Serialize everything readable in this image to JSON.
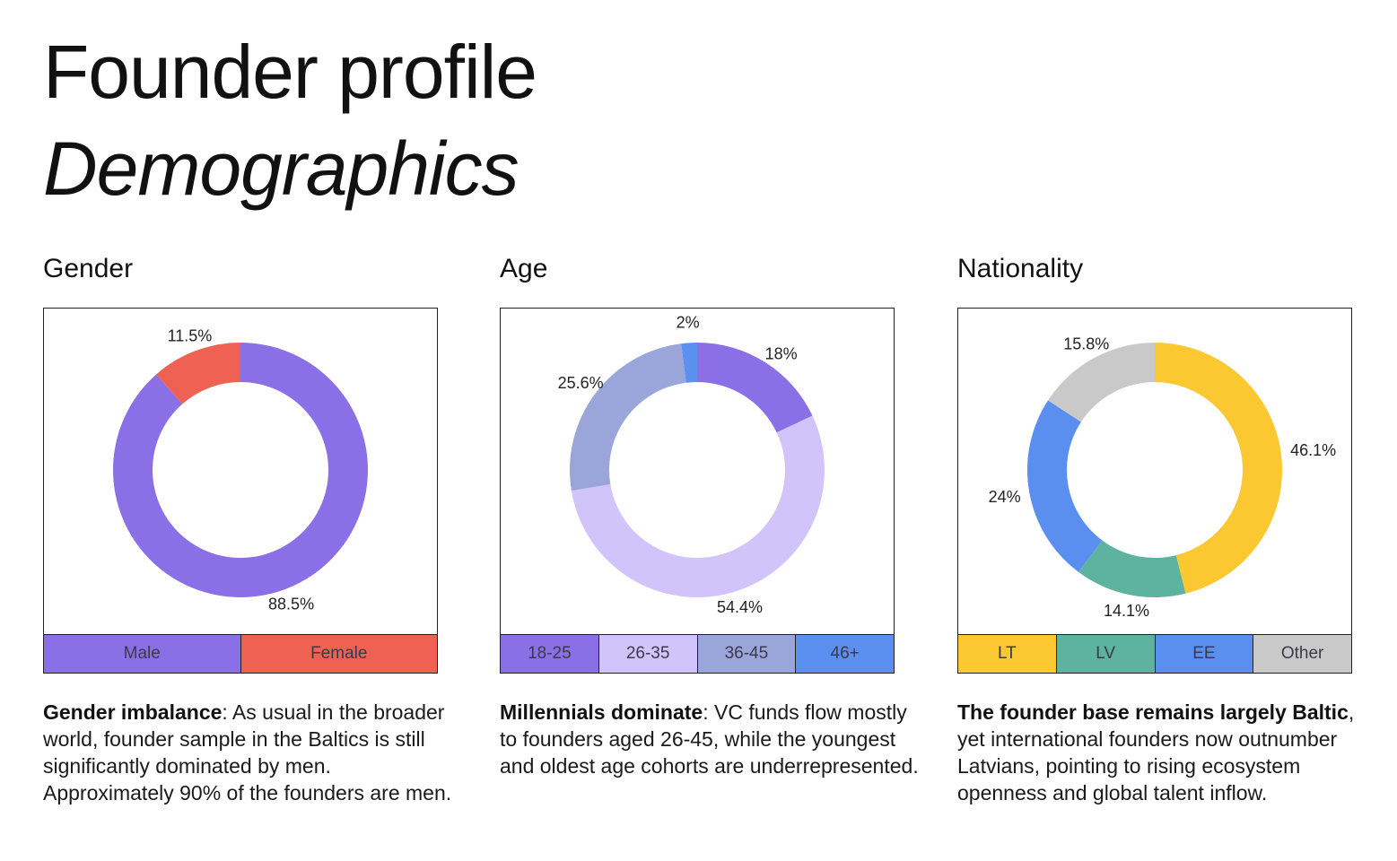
{
  "page": {
    "title": "Founder profile",
    "subtitle": "Demographics"
  },
  "panels": [
    {
      "heading": "Gender",
      "desc_bold": "Gender imbalance",
      "desc_rest": ": As usual in the broader world, founder sample in the Baltics is still significantly dominated by men. Approximately 90% of the founders are men."
    },
    {
      "heading": "Age",
      "desc_bold": "Millennials dominate",
      "desc_rest": ": VC funds flow mostly to founders aged 26-45, while the youngest and oldest age cohorts are underrepresented."
    },
    {
      "heading": "Nationality",
      "desc_bold": "The founder base remains largely Baltic",
      "desc_rest": ", yet international founders now outnumber Latvians, pointing to rising ecosystem openness and global talent inflow."
    }
  ],
  "chart_data": [
    {
      "type": "pie",
      "title": "Gender",
      "donut": true,
      "categories": [
        "Male",
        "Female"
      ],
      "values": [
        88.5,
        11.5
      ],
      "value_labels": [
        "88.5%",
        "11.5%"
      ],
      "colors": [
        "#8b6fe6",
        "#ef6152"
      ],
      "legend": "bottom"
    },
    {
      "type": "pie",
      "title": "Age",
      "donut": true,
      "categories": [
        "18-25",
        "26-35",
        "36-45",
        "46+"
      ],
      "values": [
        18,
        54.4,
        25.6,
        2
      ],
      "value_labels": [
        "18%",
        "54.4%",
        "25.6%",
        "2%"
      ],
      "colors": [
        "#8b6fe6",
        "#d1c4fb",
        "#9aa5d9",
        "#5b8ff0"
      ],
      "legend": "bottom"
    },
    {
      "type": "pie",
      "title": "Nationality",
      "donut": true,
      "categories": [
        "LT",
        "LV",
        "EE",
        "Other"
      ],
      "values": [
        46.1,
        14.1,
        24,
        15.8
      ],
      "value_labels": [
        "46.1%",
        "14.1%",
        "24%",
        "15.8%"
      ],
      "colors": [
        "#fbc832",
        "#5db3a0",
        "#5a8ff0",
        "#c9c9c9"
      ],
      "legend": "bottom"
    }
  ]
}
